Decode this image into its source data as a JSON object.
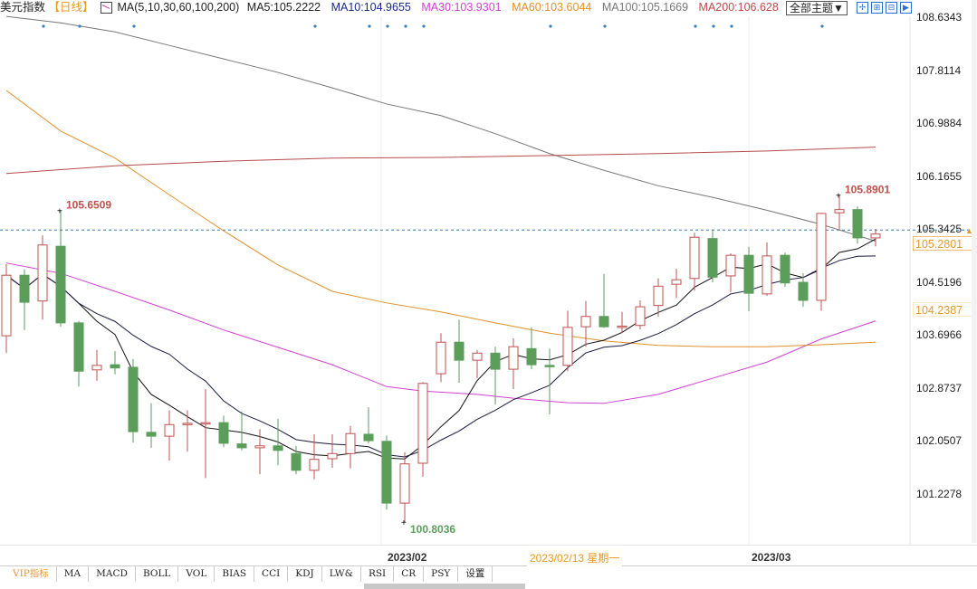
{
  "header": {
    "title": "美元指数",
    "period": "【日线】",
    "ma_params": "MA(5,10,30,60,100,200)",
    "ma5": "MA5:105.2222",
    "ma10": "MA10:104.9655",
    "ma30": "MA30:103.9301",
    "ma60": "MA60:103.6044",
    "ma100": "MA100:105.1669",
    "ma200": "MA200:106.628",
    "theme_button": "全部主题▼",
    "tools": [
      "crosshair-icon",
      "zoom-in-icon",
      "zoom-out-icon",
      "scroll-end-icon"
    ]
  },
  "colors": {
    "up": "#c0504d",
    "down": "#5a9e5a",
    "ma5": "#111111",
    "ma10": "#1a1a40",
    "ma30": "#d040d0",
    "ma60": "#e0902a",
    "ma100": "#777777",
    "ma200": "#b84a4a",
    "marker": "#3a7fc0",
    "accent": "#e59a2a"
  },
  "chart_data": {
    "type": "candlestick",
    "title": "美元指数 日线",
    "ylim": [
      100.55,
      108.6343
    ],
    "y_ticks": [
      "108.6343",
      "107.8114",
      "106.9884",
      "106.1655",
      "105.3425",
      "104.5196",
      "103.6966",
      "102.8737",
      "102.0507",
      "101.2278"
    ],
    "x_labels": [
      {
        "index": 20.7,
        "label": "2023/02"
      },
      {
        "index": 41,
        "label": "2023/03"
      }
    ],
    "crosshair": {
      "date": "2023/02/13 星期一",
      "price": "104.2387"
    },
    "last_price": {
      "label": "105.2801",
      "reference": 105.3425
    },
    "max_label": {
      "index": 46,
      "value": "105.8901"
    },
    "max_label_left": {
      "index": 3,
      "value": "105.6509"
    },
    "min_label": {
      "index": 22,
      "value": "100.8036"
    },
    "event_markers": [
      2,
      4,
      7,
      17,
      20,
      21,
      22,
      23,
      30,
      33,
      38,
      39,
      40,
      45
    ],
    "ohlc": [
      [
        103.7,
        104.81,
        103.43,
        104.64
      ],
      [
        104.64,
        104.73,
        103.79,
        104.22
      ],
      [
        104.24,
        105.26,
        103.95,
        105.11
      ],
      [
        105.09,
        105.6509,
        103.84,
        103.9
      ],
      [
        103.9,
        103.93,
        102.91,
        103.15
      ],
      [
        103.17,
        103.48,
        103.0,
        103.24
      ],
      [
        103.25,
        103.46,
        103.1,
        103.2
      ],
      [
        103.21,
        103.34,
        102.04,
        102.21
      ],
      [
        102.2,
        102.65,
        101.96,
        102.14
      ],
      [
        102.14,
        102.54,
        101.76,
        102.32
      ],
      [
        102.33,
        102.54,
        101.9,
        102.34
      ],
      [
        102.345,
        102.87,
        101.49,
        102.35
      ],
      [
        102.35,
        102.46,
        101.97,
        102.03
      ],
      [
        102.02,
        102.52,
        101.92,
        101.96
      ],
      [
        101.96,
        102.25,
        101.55,
        101.99
      ],
      [
        101.99,
        102.41,
        101.69,
        101.92
      ],
      [
        101.87,
        101.99,
        101.55,
        101.61
      ],
      [
        101.61,
        102.17,
        101.47,
        101.78
      ],
      [
        101.79,
        102.17,
        101.65,
        101.87
      ],
      [
        101.87,
        102.3,
        101.64,
        102.18
      ],
      [
        102.17,
        102.59,
        102.03,
        102.07
      ],
      [
        102.06,
        102.15,
        101.0,
        101.1
      ],
      [
        101.1,
        101.89,
        100.8036,
        101.71
      ],
      [
        101.72,
        102.98,
        101.51,
        102.96
      ],
      [
        103.11,
        103.74,
        102.98,
        103.6
      ],
      [
        103.6,
        103.95,
        102.97,
        103.32
      ],
      [
        103.32,
        103.48,
        103.04,
        103.43
      ],
      [
        103.43,
        103.53,
        102.63,
        103.18
      ],
      [
        103.18,
        103.66,
        102.87,
        103.53
      ],
      [
        103.5,
        103.83,
        103.18,
        103.25
      ],
      [
        103.24,
        103.5,
        102.48,
        103.235
      ],
      [
        103.24,
        104.09,
        103.15,
        103.83
      ],
      [
        103.84,
        104.24,
        103.53,
        104.0
      ],
      [
        104.0,
        104.66,
        103.82,
        103.84
      ],
      [
        103.84,
        104.07,
        103.74,
        103.85
      ],
      [
        103.86,
        104.25,
        103.8,
        104.15
      ],
      [
        104.17,
        104.59,
        104.0,
        104.47
      ],
      [
        104.5,
        104.74,
        104.29,
        104.57
      ],
      [
        104.59,
        105.3,
        104.4,
        105.23
      ],
      [
        105.21,
        105.35,
        104.53,
        104.61
      ],
      [
        104.63,
        104.98,
        104.38,
        104.95
      ],
      [
        104.95,
        105.08,
        104.08,
        104.36
      ],
      [
        104.35,
        105.15,
        104.32,
        104.94
      ],
      [
        104.95,
        104.99,
        104.46,
        104.52
      ],
      [
        104.53,
        104.67,
        104.15,
        104.25
      ],
      [
        104.25,
        105.61,
        104.09,
        105.6
      ],
      [
        105.61,
        105.8901,
        105.35,
        105.66
      ],
      [
        105.66,
        105.71,
        105.13,
        105.22
      ],
      [
        105.22,
        105.36,
        105.09,
        105.28
      ]
    ],
    "ma_lines": {
      "ma30": [
        [
          0,
          104.83
        ],
        [
          3,
          104.67
        ],
        [
          6,
          104.39
        ],
        [
          9,
          104.1
        ],
        [
          12,
          103.79
        ],
        [
          15,
          103.52
        ],
        [
          18,
          103.25
        ],
        [
          21,
          102.91
        ],
        [
          23,
          102.84
        ],
        [
          26,
          102.79
        ],
        [
          28,
          102.73
        ],
        [
          31,
          102.66
        ],
        [
          33,
          102.65
        ],
        [
          36,
          102.79
        ],
        [
          39,
          103.04
        ],
        [
          42,
          103.29
        ],
        [
          45,
          103.65
        ],
        [
          48,
          103.93
        ]
      ],
      "ma60": [
        [
          0,
          107.51
        ],
        [
          3,
          106.88
        ],
        [
          6,
          106.46
        ],
        [
          9,
          105.89
        ],
        [
          12,
          105.33
        ],
        [
          15,
          104.8
        ],
        [
          18,
          104.39
        ],
        [
          21,
          104.21
        ],
        [
          24,
          104.07
        ],
        [
          27,
          103.9
        ],
        [
          30,
          103.74
        ],
        [
          33,
          103.62
        ],
        [
          36,
          103.55
        ],
        [
          39,
          103.53
        ],
        [
          42,
          103.53
        ],
        [
          45,
          103.56
        ],
        [
          48,
          103.6
        ]
      ],
      "ma100": [
        [
          0,
          108.66
        ],
        [
          3,
          108.56
        ],
        [
          6,
          108.42
        ],
        [
          9,
          108.21
        ],
        [
          12,
          108.0
        ],
        [
          15,
          107.79
        ],
        [
          18,
          107.55
        ],
        [
          21,
          107.3
        ],
        [
          24,
          107.12
        ],
        [
          27,
          106.84
        ],
        [
          30,
          106.53
        ],
        [
          33,
          106.27
        ],
        [
          36,
          106.03
        ],
        [
          39,
          105.85
        ],
        [
          42,
          105.65
        ],
        [
          45,
          105.43
        ],
        [
          48,
          105.17
        ]
      ],
      "ma200": [
        [
          0,
          106.22
        ],
        [
          6,
          106.34
        ],
        [
          12,
          106.41
        ],
        [
          18,
          106.46
        ],
        [
          24,
          106.47
        ],
        [
          30,
          106.5
        ],
        [
          36,
          106.53
        ],
        [
          42,
          106.57
        ],
        [
          48,
          106.63
        ]
      ]
    }
  },
  "tabs": [
    "VIP指标",
    "MA",
    "MACD",
    "BOLL",
    "VOL",
    "BIAS",
    "CCI",
    "KDJ",
    "LW&",
    "RSI",
    "CR",
    "PSY",
    "设置"
  ]
}
